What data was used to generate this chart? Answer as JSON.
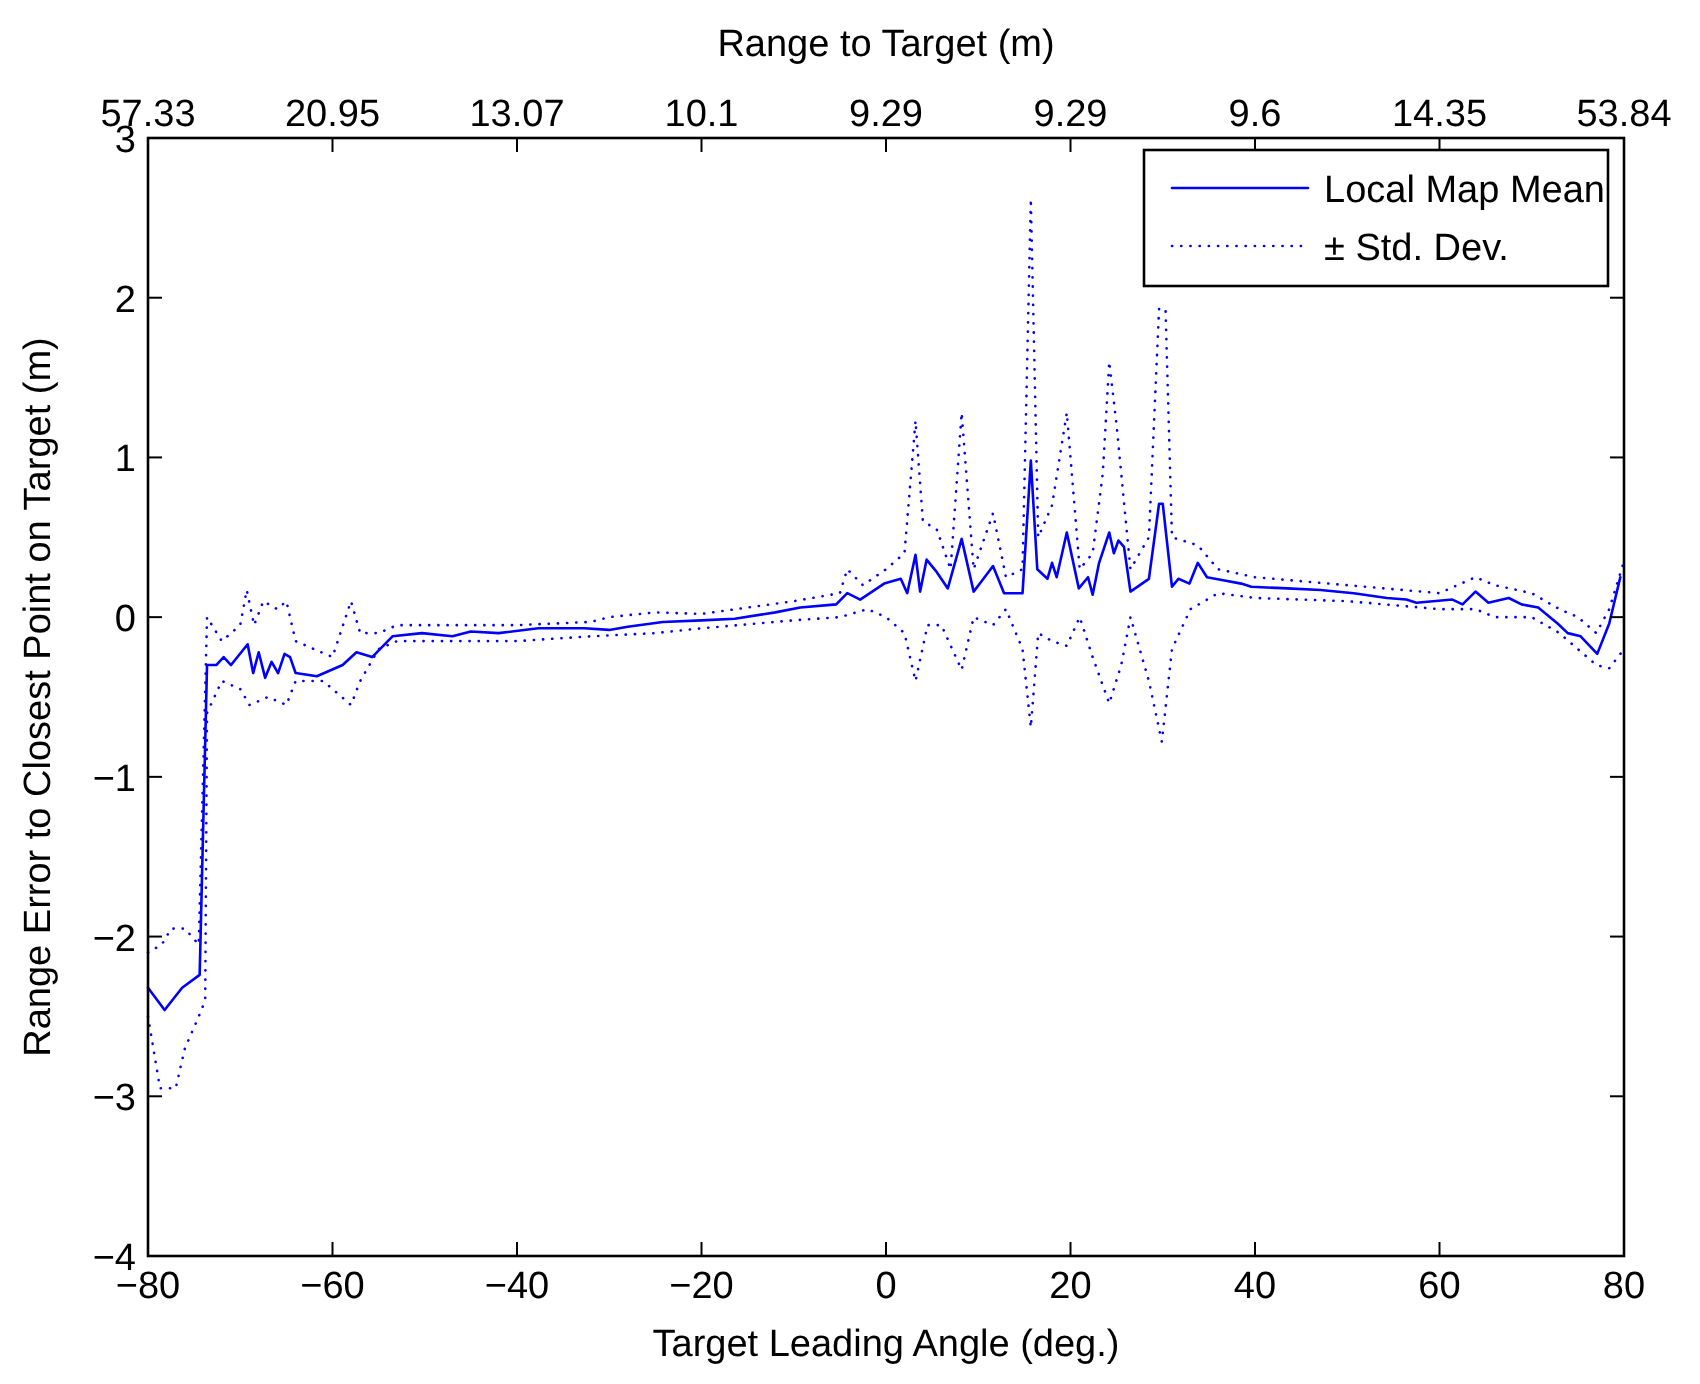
{
  "chart_data": {
    "type": "line",
    "xlabel": "Target Leading Angle (deg.)",
    "ylabel": "Range Error to Closest Point on Target (m)",
    "x2label": "Range to Target (m)",
    "xlim": [
      -80,
      80
    ],
    "xticks": [
      -80,
      -60,
      -40,
      -20,
      0,
      20,
      40,
      60,
      80
    ],
    "ylim": [
      -4,
      3
    ],
    "yticks": [
      -4,
      -3,
      -2,
      -1,
      0,
      1,
      2,
      3
    ],
    "annotations": [
      "57.33",
      "20.95",
      "13.07",
      "10.1",
      "9.29",
      "9.29",
      "9.6",
      "14.35",
      "53.84"
    ],
    "grid": false,
    "legend": "top right",
    "marker": "none",
    "series": [
      {
        "name": "Local Map Mean",
        "color": "#0000ff",
        "line_style": "solid",
        "x": [
          -80,
          -78.2,
          -76.3,
          -74.4,
          -73.6,
          -72.6,
          -71.8,
          -71,
          -69.2,
          -68.6,
          -68,
          -67.3,
          -66.6,
          -65.9,
          -65.2,
          -64.6,
          -64,
          -61.7,
          -58.9,
          -57.4,
          -55.7,
          -53.5,
          -50.3,
          -47,
          -45,
          -42,
          -37.7,
          -32.7,
          -30,
          -28,
          -24.2,
          -20,
          -16.4,
          -12,
          -9.3,
          -5.4,
          -4.2,
          -2.8,
          -0.2,
          1.6,
          2.3,
          3.2,
          3.7,
          4.4,
          5.4,
          6.7,
          8.2,
          9.5,
          10.3,
          11.6,
          12.8,
          14.8,
          15.7,
          16.4,
          17.5,
          18,
          18.5,
          19.6,
          20.9,
          21.9,
          22.4,
          23.1,
          24.2,
          24.7,
          25.2,
          25.8,
          26.5,
          28.5,
          29.6,
          30,
          31,
          31.7,
          32.9,
          33.8,
          34.8,
          36.7,
          38.5,
          39.6,
          43.5,
          47.1,
          50.7,
          54.3,
          56.4,
          57.5,
          61.4,
          62.5,
          63.9,
          65.3,
          67.5,
          68.9,
          70.7,
          72.8,
          73.9,
          75.3,
          77.1,
          78.4,
          79.6
        ],
        "values": [
          -2.32,
          -2.46,
          -2.32,
          -2.24,
          -0.3,
          -0.3,
          -0.25,
          -0.3,
          -0.17,
          -0.35,
          -0.22,
          -0.38,
          -0.28,
          -0.35,
          -0.23,
          -0.25,
          -0.35,
          -0.37,
          -0.3,
          -0.22,
          -0.25,
          -0.12,
          -0.1,
          -0.12,
          -0.09,
          -0.1,
          -0.07,
          -0.07,
          -0.08,
          -0.06,
          -0.03,
          -0.02,
          -0.01,
          0.03,
          0.06,
          0.08,
          0.15,
          0.11,
          0.21,
          0.24,
          0.15,
          0.39,
          0.16,
          0.36,
          0.29,
          0.18,
          0.49,
          0.16,
          0.22,
          0.32,
          0.15,
          0.15,
          0.98,
          0.3,
          0.24,
          0.34,
          0.25,
          0.53,
          0.18,
          0.25,
          0.14,
          0.34,
          0.53,
          0.4,
          0.48,
          0.44,
          0.16,
          0.24,
          0.71,
          0.71,
          0.19,
          0.24,
          0.21,
          0.34,
          0.25,
          0.23,
          0.21,
          0.19,
          0.18,
          0.17,
          0.15,
          0.12,
          0.11,
          0.09,
          0.11,
          0.08,
          0.16,
          0.09,
          0.12,
          0.08,
          0.06,
          -0.04,
          -0.1,
          -0.12,
          -0.23,
          -0.04,
          0.25
        ]
      },
      {
        "name": "± Std. Dev.",
        "color": "#0000ff",
        "line_style": "dotted",
        "x": [
          -80,
          -78.5,
          -77.5,
          -76,
          -74.5,
          -73.6,
          -72,
          -70,
          -69.3,
          -68.5,
          -67.5,
          -66,
          -65,
          -64,
          -60,
          -58,
          -57,
          -55,
          -53,
          -45,
          -40,
          -32,
          -30,
          -25,
          -20,
          -10,
          -5,
          -4.2,
          -2.5,
          0,
          2,
          3.2,
          4,
          5.5,
          7,
          8.2,
          9.5,
          11.6,
          13,
          14.8,
          15.7,
          16.5,
          18,
          19.6,
          21,
          22.4,
          23.5,
          24.2,
          25,
          26.5,
          28.5,
          29.6,
          30.3,
          31,
          33.8,
          36,
          40,
          50,
          60,
          63.9,
          66,
          70,
          73,
          75,
          77,
          78.4,
          80
        ],
        "values": [
          -2.1,
          -2.05,
          -1.95,
          -1.95,
          -2.05,
          0.0,
          -0.15,
          -0.05,
          0.17,
          -0.05,
          0.1,
          0.05,
          0.1,
          -0.15,
          -0.25,
          0.1,
          -0.1,
          -0.1,
          -0.05,
          -0.05,
          -0.05,
          -0.03,
          0.0,
          0.03,
          0.02,
          0.1,
          0.15,
          0.3,
          0.2,
          0.3,
          0.4,
          1.23,
          0.6,
          0.55,
          0.3,
          1.28,
          0.3,
          0.65,
          0.25,
          0.3,
          2.62,
          0.5,
          0.7,
          1.28,
          0.3,
          0.4,
          0.9,
          1.6,
          1.2,
          0.3,
          0.5,
          1.93,
          1.93,
          0.5,
          0.45,
          0.3,
          0.25,
          0.2,
          0.15,
          0.25,
          0.2,
          0.15,
          0.05,
          0.0,
          -0.1,
          0.05,
          0.35
        ]
      },
      {
        "color": "#0000ff",
        "line_style": "dotted",
        "x": [
          -80,
          -78.7,
          -77,
          -76,
          -74.5,
          -73.8,
          -73.6,
          -72,
          -70,
          -69,
          -67,
          -65,
          -64,
          -61,
          -58,
          -57,
          -55,
          -53,
          -45,
          -40,
          -32,
          -25,
          -20,
          -10,
          -5,
          -2,
          0,
          2,
          3.2,
          4.5,
          6,
          8.2,
          9.5,
          11.6,
          13,
          14.8,
          15.7,
          16.5,
          18,
          19.6,
          21,
          22.4,
          24.2,
          25.5,
          26.5,
          28.5,
          29.9,
          31,
          33,
          36,
          40,
          50,
          60,
          63.9,
          66,
          70,
          73,
          75,
          77,
          78.4,
          80
        ],
        "values": [
          -2.5,
          -2.95,
          -2.95,
          -2.7,
          -2.5,
          -2.4,
          -0.6,
          -0.4,
          -0.45,
          -0.55,
          -0.5,
          -0.55,
          -0.4,
          -0.4,
          -0.55,
          -0.4,
          -0.2,
          -0.15,
          -0.15,
          -0.15,
          -0.12,
          -0.1,
          -0.07,
          -0.02,
          0.0,
          0.05,
          0.0,
          -0.1,
          -0.4,
          -0.05,
          -0.05,
          -0.33,
          0.0,
          -0.05,
          0.05,
          -0.2,
          -0.69,
          -0.1,
          -0.15,
          -0.18,
          0.0,
          -0.25,
          -0.54,
          -0.3,
          0.0,
          -0.4,
          -0.78,
          -0.2,
          0.05,
          0.15,
          0.12,
          0.1,
          0.05,
          0.05,
          0.0,
          0.0,
          -0.1,
          -0.2,
          -0.3,
          -0.32,
          -0.2
        ]
      }
    ]
  }
}
